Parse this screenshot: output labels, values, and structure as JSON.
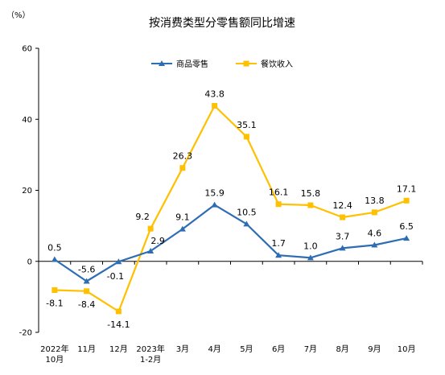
{
  "chart_data": {
    "type": "line",
    "title": "按消费类型分零售额同比增速",
    "ylabel": "（%）",
    "ylim": [
      -20,
      60
    ],
    "yticks": [
      -20,
      0,
      20,
      40,
      60
    ],
    "grid": false,
    "legend_position": "top-center",
    "categories": [
      [
        "2022年",
        "10月"
      ],
      [
        "11月"
      ],
      [
        "12月"
      ],
      [
        "2023年",
        "1-2月"
      ],
      [
        "3月"
      ],
      [
        "4月"
      ],
      [
        "5月"
      ],
      [
        "6月"
      ],
      [
        "7月"
      ],
      [
        "8月"
      ],
      [
        "9月"
      ],
      [
        "10月"
      ]
    ],
    "series": [
      {
        "name": "商品零售",
        "color": "#2E6DB4",
        "marker": "triangle",
        "values": [
          0.5,
          -5.6,
          -0.1,
          2.9,
          9.1,
          15.9,
          10.5,
          1.7,
          1.0,
          3.7,
          4.6,
          6.5
        ],
        "labels": [
          "0.5",
          "-5.6",
          "-0.1",
          "2.9",
          "9.1",
          "15.9",
          "10.5",
          "1.7",
          "1.0",
          "3.7",
          "4.6",
          "6.5"
        ]
      },
      {
        "name": "餐饮收入",
        "color": "#FFC000",
        "marker": "square",
        "values": [
          -8.1,
          -8.4,
          -14.1,
          9.2,
          26.3,
          43.8,
          35.1,
          16.1,
          15.8,
          12.4,
          13.8,
          17.1
        ],
        "labels": [
          "-8.1",
          "-8.4",
          "-14.1",
          "9.2",
          "26.3",
          "43.8",
          "35.1",
          "16.1",
          "15.8",
          "12.4",
          "13.8",
          "17.1"
        ]
      }
    ]
  }
}
